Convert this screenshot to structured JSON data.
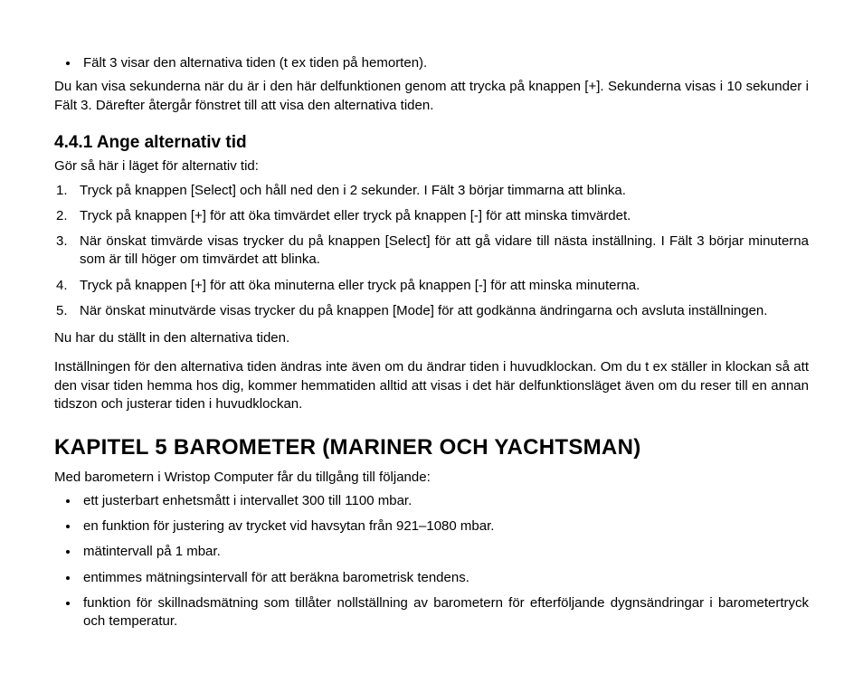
{
  "intro": {
    "bullet": "Fält 3 visar den alternativa tiden (t ex tiden på hemorten).",
    "p1": "Du kan visa sekunderna när du är i den här delfunktionen genom att trycka på knappen [+]. Sekunderna visas i 10 sekunder i Fält 3. Därefter återgår fönstret till att visa den alternativa tiden."
  },
  "section441": {
    "heading": "4.4.1 Ange alternativ tid",
    "lead": "Gör så här i läget för alternativ tid:",
    "steps": [
      "Tryck på knappen [Select] och håll ned den i 2 sekunder. I Fält 3 börjar timmarna att blinka.",
      "Tryck på knappen [+] för att öka timvärdet eller tryck på knappen [-] för att minska timvärdet.",
      "När önskat timvärde visas trycker du på knappen [Select] för att gå vidare till nästa inställning. I Fält 3 börjar minuterna som är till höger om timvärdet att blinka.",
      "Tryck på knappen [+] för att öka minuterna eller tryck på knappen [-] för att minska minuterna.",
      "När önskat minutvärde visas trycker du på knappen [Mode] för att godkänna ändringarna och avsluta inställningen."
    ],
    "after1": "Nu har du ställt in den alternativa tiden.",
    "after2": "Inställningen för den alternativa tiden ändras inte även om du ändrar tiden i huvudklockan. Om du t ex ställer in klockan så att den visar tiden hemma hos dig, kommer hemmatiden alltid att visas i det här delfunktionsläget även om du reser till en annan tidszon och justerar tiden i huvudklockan."
  },
  "chapter5": {
    "heading": "KAPITEL 5 BAROMETER (MARINER OCH YACHTSMAN)",
    "lead": "Med barometern  i Wristop Computer får du tillgång till följande:",
    "features": [
      "ett justerbart enhetsmått i intervallet 300 till 1100 mbar.",
      "en funktion för justering av trycket vid havsytan från 921–1080 mbar.",
      "mätintervall på 1 mbar.",
      "entimmes mätningsintervall för att beräkna barometrisk tendens.",
      "funktion för skillnadsmätning som tillåter nollställning av barometern för efterföljande dygnsändringar i barometertryck och temperatur."
    ]
  }
}
